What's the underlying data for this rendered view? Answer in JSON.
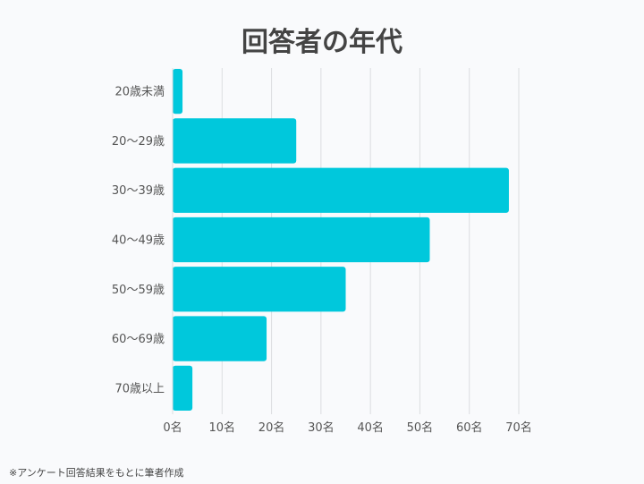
{
  "chart_data": {
    "type": "bar",
    "orientation": "horizontal",
    "title": "回答者の年代",
    "categories": [
      "20歳未満",
      "20〜29歳",
      "30〜39歳",
      "40〜49歳",
      "50〜59歳",
      "60〜69歳",
      "70歳以上"
    ],
    "values": [
      2,
      25,
      68,
      52,
      35,
      19,
      4
    ],
    "xlim": [
      0,
      70
    ],
    "xticks": [
      "0名",
      "10名",
      "20名",
      "30名",
      "40名",
      "50名",
      "60名",
      "70名"
    ],
    "xlabel": "",
    "ylabel": "",
    "grid": true,
    "bar_color": "#00c8dc"
  },
  "footnote": "※アンケート回答結果をもとに筆者作成"
}
